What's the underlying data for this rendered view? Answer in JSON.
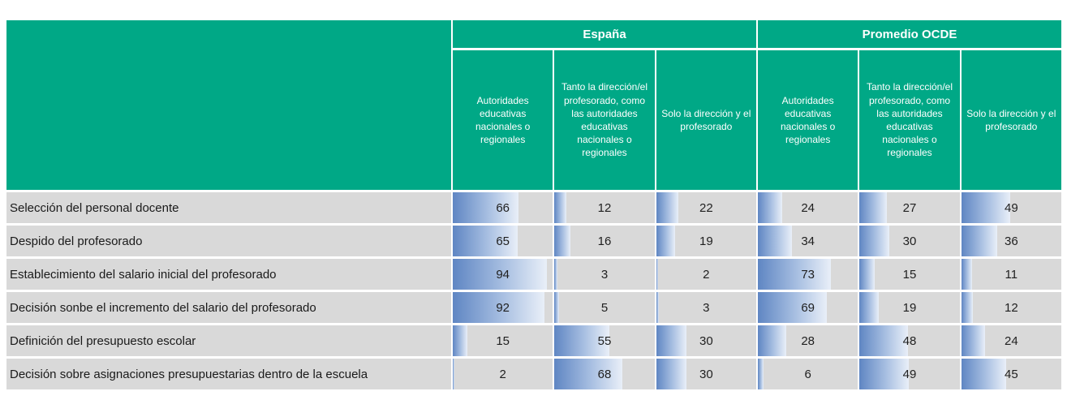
{
  "colors": {
    "header_bg": "#00A886",
    "row_bg": "#D9D9D9",
    "bar_start": "#5F86C3",
    "bar_mid": "#A9C0E2",
    "bar_end": "#E9EFF8"
  },
  "chart_data": {
    "type": "table",
    "groups": [
      "España",
      "Promedio OCDE"
    ],
    "columns": [
      "Autoridades educativas nacionales o regionales",
      "Tanto la dirección/el profesorado, como las autoridades educativas nacionales o regionales",
      "Solo la dirección y el profesorado"
    ],
    "value_range": [
      0,
      100
    ],
    "rows": [
      {
        "label": "Selección del personal docente",
        "espana": [
          66,
          12,
          22
        ],
        "ocde": [
          24,
          27,
          49
        ]
      },
      {
        "label": "Despido del profesorado",
        "espana": [
          65,
          16,
          19
        ],
        "ocde": [
          34,
          30,
          36
        ]
      },
      {
        "label": "Establecimiento del salario inicial del profesorado",
        "espana": [
          94,
          3,
          2
        ],
        "ocde": [
          73,
          15,
          11
        ]
      },
      {
        "label": "Decisión sonbe el incremento del salario del profesorado",
        "espana": [
          92,
          5,
          3
        ],
        "ocde": [
          69,
          19,
          12
        ]
      },
      {
        "label": "Definición del presupuesto escolar",
        "espana": [
          15,
          55,
          30
        ],
        "ocde": [
          28,
          48,
          24
        ]
      },
      {
        "label": "Decisión sobre asignaciones presupuestarias dentro de la escuela",
        "espana": [
          2,
          68,
          30
        ],
        "ocde": [
          6,
          49,
          45
        ]
      }
    ]
  }
}
